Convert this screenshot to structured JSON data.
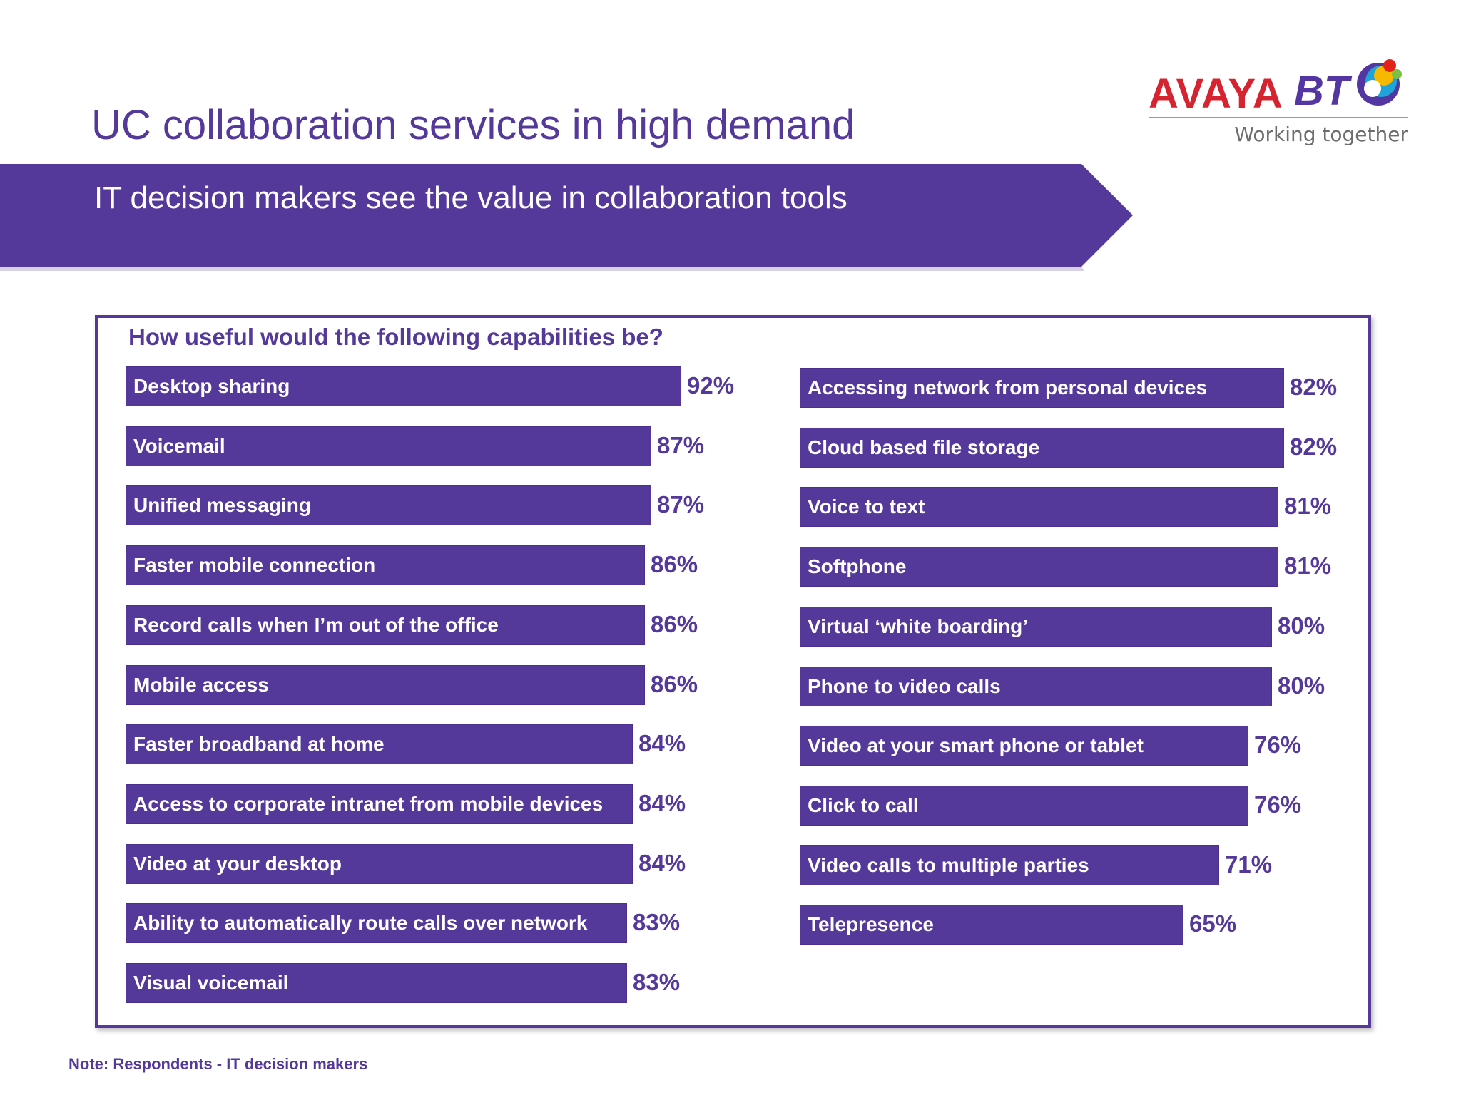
{
  "header": {
    "title": "UC collaboration services in high demand",
    "banner_text": "IT decision makers see the value in collaboration tools",
    "logo": {
      "avaya": "AVAYA",
      "bt": "BT",
      "tagline": "Working together"
    }
  },
  "footer": {
    "note": "Note: Respondents - IT decision makers"
  },
  "colors": {
    "accent": "#55399a",
    "avaya_red": "#d52330"
  },
  "chart_data": {
    "type": "bar",
    "orientation": "horizontal",
    "title": "How useful would the following capabilities be?",
    "unit": "%",
    "columns": [
      {
        "categories": [
          "Desktop sharing",
          "Voicemail",
          "Unified messaging",
          "Faster mobile connection",
          "Record calls when I’m out of the office",
          "Mobile access",
          "Faster broadband at home",
          "Access to corporate intranet from mobile devices",
          "Video at your desktop",
          "Ability to automatically route calls over network",
          "Visual voicemail"
        ],
        "values": [
          92,
          87,
          87,
          86,
          86,
          86,
          84,
          84,
          84,
          83,
          83
        ],
        "value_labels": [
          "92%",
          "87%",
          "87%",
          "86%",
          "86%",
          "86%",
          "84%",
          "84%",
          "84%",
          "83%",
          "83%"
        ]
      },
      {
        "categories": [
          "Accessing network from personal devices",
          "Cloud based file storage",
          "Voice to text",
          "Softphone",
          "Virtual ‘white boarding’",
          "Phone to video calls",
          "Video at your smart phone or tablet",
          "Click to call",
          "Video calls to multiple parties",
          "Telepresence"
        ],
        "values": [
          82,
          82,
          81,
          81,
          80,
          80,
          76,
          76,
          71,
          65
        ],
        "value_labels": [
          "82%",
          "82%",
          "81%",
          "81%",
          "80%",
          "80%",
          "76%",
          "76%",
          "71%",
          "65%"
        ]
      }
    ]
  }
}
